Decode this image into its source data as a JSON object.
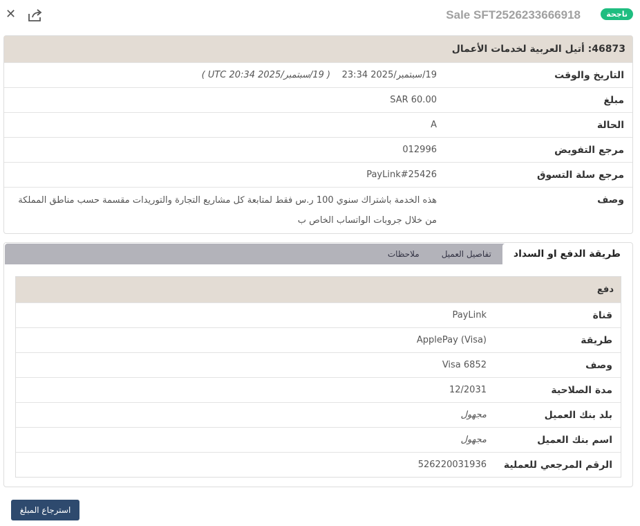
{
  "header": {
    "badge": "ناجحة",
    "title": "Sale  SFT2526233666918",
    "close_icon": "close-icon",
    "share_icon": "share-icon"
  },
  "summary": {
    "title": "46873: أتيل العربية لخدمات الأعمال",
    "rows": [
      {
        "label": "التاريخ والوقت",
        "value": "19/سبتمبر/2025 23:34",
        "extra": "( 19/سبتمبر/2025 20:34 UTC )"
      },
      {
        "label": "مبلغ",
        "value": "SAR 60.00"
      },
      {
        "label": "الحالة",
        "value": "A"
      },
      {
        "label": "مرجع التفويض",
        "value": "012996"
      },
      {
        "label": "مرجع سلة التسوق",
        "value": "PayLink#25426"
      },
      {
        "label": "وصف",
        "value": "هذه الخدمة باشتراك سنوي 100 ر.س فقط لمتابعة كل مشاريع التجارة والتوريدات مقسمة حسب مناطق المملكة من خلال جروبات الواتساب الخاص ب"
      }
    ]
  },
  "tabs": [
    {
      "label": "طريقة الدفع او السداد",
      "active": true
    },
    {
      "label": "تفاصيل العميل"
    },
    {
      "label": "ملاحظات"
    }
  ],
  "payment": {
    "title": "دفع",
    "rows": [
      {
        "label": "قناة",
        "value": "PayLink"
      },
      {
        "label": "طريقة",
        "value": "ApplePay (Visa)"
      },
      {
        "label": "وصف",
        "value": "Visa 6852"
      },
      {
        "label": "مدة الصلاحية",
        "value": "12/2031"
      },
      {
        "label": "بلد بنك العميل",
        "value": "مجهول"
      },
      {
        "label": "اسم بنك العميل",
        "value": "مجهول"
      },
      {
        "label": "الرقم المرجعي للعملية",
        "value": "526220031936"
      }
    ]
  },
  "refund_button": "استرجاع المبلغ"
}
